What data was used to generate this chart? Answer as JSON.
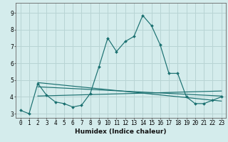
{
  "title": "",
  "xlabel": "Humidex (Indice chaleur)",
  "bg_color": "#d4ecec",
  "grid_color": "#b8d4d4",
  "line_color": "#1a7070",
  "xlim": [
    -0.5,
    23.5
  ],
  "ylim": [
    2.75,
    9.6
  ],
  "yticks": [
    3,
    4,
    5,
    6,
    7,
    8,
    9
  ],
  "xticks": [
    0,
    1,
    2,
    3,
    4,
    5,
    6,
    7,
    8,
    9,
    10,
    11,
    12,
    13,
    14,
    15,
    16,
    17,
    18,
    19,
    20,
    21,
    22,
    23
  ],
  "main_series": [
    3.2,
    3.0,
    4.8,
    4.1,
    3.7,
    3.6,
    3.4,
    3.5,
    4.2,
    5.8,
    7.5,
    6.7,
    7.3,
    7.6,
    8.85,
    8.25,
    7.1,
    5.4,
    5.4,
    4.0,
    3.6,
    3.6,
    3.8,
    4.0
  ],
  "trend1_x": [
    2,
    23
  ],
  "trend1_y": [
    4.85,
    3.75
  ],
  "trend2_x": [
    2,
    23
  ],
  "trend2_y": [
    4.6,
    4.05
  ],
  "trend3_x": [
    2,
    23
  ],
  "trend3_y": [
    4.05,
    4.35
  ],
  "xlabel_fontsize": 6.5,
  "tick_fontsize": 5.5,
  "title_fontsize": 7
}
